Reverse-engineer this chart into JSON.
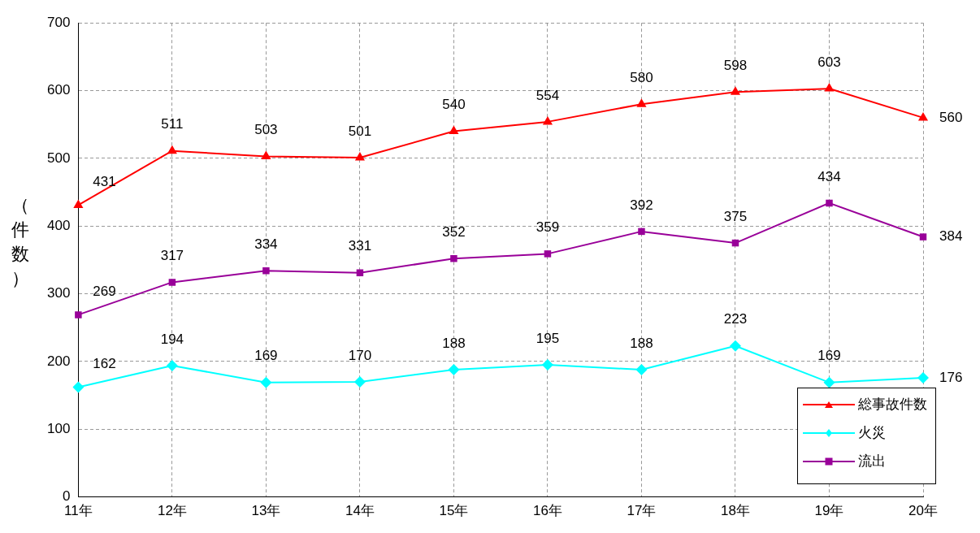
{
  "chart_data": {
    "type": "line",
    "ylabel": "（件数）",
    "categories": [
      "11年",
      "12年",
      "13年",
      "14年",
      "15年",
      "16年",
      "17年",
      "18年",
      "19年",
      "20年"
    ],
    "series": [
      {
        "name": "総事故件数",
        "color": "#ff0000",
        "marker": "triangle",
        "values": [
          431,
          511,
          503,
          501,
          540,
          554,
          580,
          598,
          603,
          560
        ]
      },
      {
        "name": "火災",
        "color": "#00ffff",
        "marker": "diamond",
        "values": [
          162,
          194,
          169,
          170,
          188,
          195,
          188,
          223,
          169,
          176
        ]
      },
      {
        "name": "流出",
        "color": "#990099",
        "marker": "square",
        "values": [
          269,
          317,
          334,
          331,
          352,
          359,
          392,
          375,
          434,
          384
        ]
      }
    ],
    "ylim": [
      0,
      700
    ],
    "yticks": [
      0,
      100,
      200,
      300,
      400,
      500,
      600,
      700
    ],
    "grid": true,
    "legend": "bottom right",
    "data_labels": true
  }
}
